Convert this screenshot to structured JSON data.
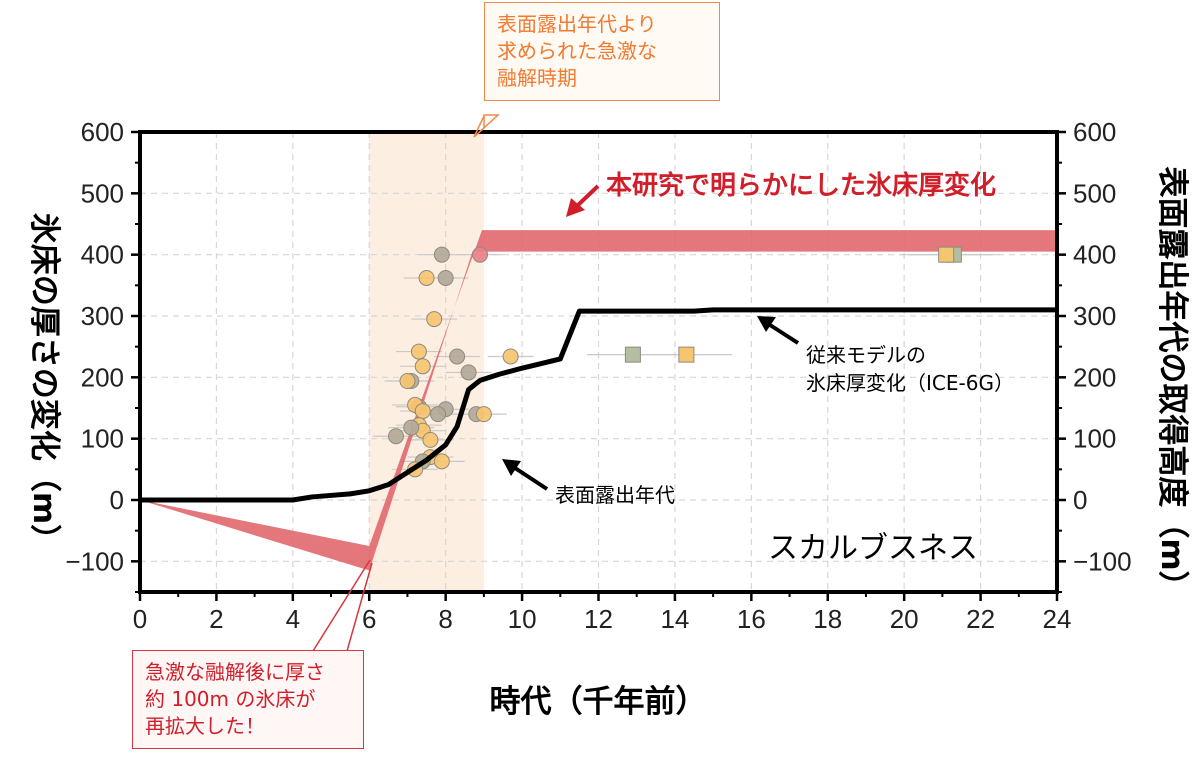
{
  "chart_data": {
    "type": "line",
    "xlabel": "時代（千年前）",
    "ylabel_left": "氷床の厚さの変化（m）",
    "ylabel_right": "表面露出年代の取得高度（m）",
    "xlim": [
      0,
      24
    ],
    "ylim": [
      -150,
      600
    ],
    "x_ticks": [
      "0",
      "2",
      "4",
      "6",
      "8",
      "10",
      "12",
      "14",
      "16",
      "18",
      "20",
      "22",
      "24"
    ],
    "y_ticks": [
      "600",
      "500",
      "400",
      "300",
      "200",
      "100",
      "0",
      "−100"
    ],
    "grid": true,
    "highlight_span": {
      "x": [
        6.0,
        9.0
      ],
      "color": "#fdeee2"
    },
    "band": {
      "name": "本研究で明らかにした氷床厚変化",
      "color": "#e06469",
      "upper": [
        [
          0,
          0
        ],
        [
          6.0,
          -75
        ],
        [
          8.95,
          440
        ],
        [
          24,
          440
        ]
      ],
      "lower": [
        [
          0,
          0
        ],
        [
          6.0,
          -115
        ],
        [
          8.7,
          405
        ],
        [
          24,
          405
        ]
      ]
    },
    "ice6g": {
      "name": "従来モデルの氷床厚変化（ICE-6G）",
      "color": "#000000",
      "points": [
        [
          0,
          0
        ],
        [
          4.0,
          0
        ],
        [
          4.5,
          5
        ],
        [
          5.5,
          10
        ],
        [
          6.0,
          15
        ],
        [
          6.5,
          25
        ],
        [
          7.0,
          45
        ],
        [
          7.5,
          65
        ],
        [
          8.0,
          90
        ],
        [
          8.3,
          120
        ],
        [
          8.6,
          180
        ],
        [
          8.9,
          195
        ],
        [
          9.4,
          205
        ],
        [
          10.0,
          215
        ],
        [
          11.0,
          230
        ],
        [
          11.5,
          308
        ],
        [
          14.5,
          308
        ],
        [
          15.0,
          310
        ],
        [
          24,
          310
        ]
      ]
    },
    "exposure_ages": {
      "name": "表面露出年代",
      "circles": [
        {
          "x": 7.9,
          "y": 400,
          "c": "#b3a998"
        },
        {
          "x": 8.9,
          "y": 400,
          "c": "#e9828a"
        },
        {
          "x": 7.5,
          "y": 362,
          "c": "#f6c66f"
        },
        {
          "x": 8.0,
          "y": 362,
          "c": "#b3a998"
        },
        {
          "x": 7.7,
          "y": 295,
          "c": "#f6c66f"
        },
        {
          "x": 7.3,
          "y": 242,
          "c": "#f6c66f"
        },
        {
          "x": 8.3,
          "y": 234,
          "c": "#b3a998"
        },
        {
          "x": 9.7,
          "y": 234,
          "c": "#f6c66f"
        },
        {
          "x": 7.4,
          "y": 218,
          "c": "#f6c66f"
        },
        {
          "x": 8.6,
          "y": 208,
          "c": "#b3a998"
        },
        {
          "x": 7.1,
          "y": 194,
          "c": "#b3a998"
        },
        {
          "x": 7.0,
          "y": 194,
          "c": "#f6c66f"
        },
        {
          "x": 8.0,
          "y": 148,
          "c": "#b3a998"
        },
        {
          "x": 7.3,
          "y": 152,
          "c": "#e9828a"
        },
        {
          "x": 7.2,
          "y": 155,
          "c": "#f6c66f"
        },
        {
          "x": 7.4,
          "y": 145,
          "c": "#f6c66f"
        },
        {
          "x": 8.8,
          "y": 140,
          "c": "#b3a998"
        },
        {
          "x": 9.0,
          "y": 140,
          "c": "#f6c66f"
        },
        {
          "x": 7.8,
          "y": 140,
          "c": "#b3a998"
        },
        {
          "x": 7.3,
          "y": 122,
          "c": "#f6c66f"
        },
        {
          "x": 7.4,
          "y": 113,
          "c": "#f6c66f"
        },
        {
          "x": 7.1,
          "y": 118,
          "c": "#b3a998"
        },
        {
          "x": 7.6,
          "y": 98,
          "c": "#f6c66f"
        },
        {
          "x": 6.7,
          "y": 104,
          "c": "#b3a998"
        },
        {
          "x": 7.6,
          "y": 70,
          "c": "#f6c66f"
        },
        {
          "x": 7.9,
          "y": 63,
          "c": "#f6c66f"
        },
        {
          "x": 7.4,
          "y": 63,
          "c": "#b3a998"
        },
        {
          "x": 7.2,
          "y": 50,
          "c": "#f6c66f"
        }
      ],
      "squares": [
        {
          "x": 21.3,
          "y": 400,
          "c": "#b3bfa0"
        },
        {
          "x": 21.1,
          "y": 400,
          "c": "#f6c66f"
        },
        {
          "x": 12.9,
          "y": 237,
          "c": "#b3bfa0"
        },
        {
          "x": 14.3,
          "y": 237,
          "c": "#f6c66f"
        }
      ]
    }
  },
  "annotations": {
    "band_label": "本研究で明らかにした氷床厚変化",
    "model_label_line1": "従来モデルの",
    "model_label_line2": "氷床厚変化（ICE-6G）",
    "exposure_label": "表面露出年代",
    "location_label": "スカルブスネス",
    "callout_top": "表面露出年代より\n求められた急激な\n融解時期",
    "callout_bottom": "急激な融解後に厚さ\n約 100m の氷床が\n再拡大した！"
  }
}
